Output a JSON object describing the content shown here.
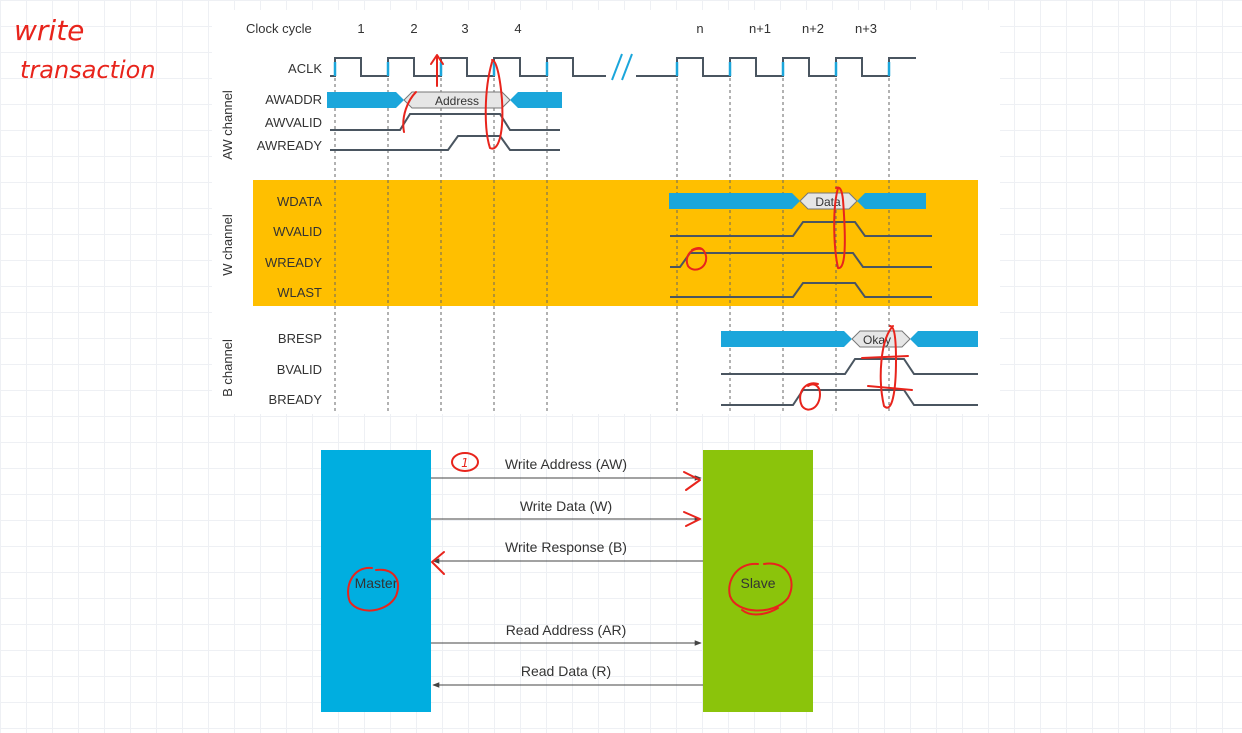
{
  "annotation": {
    "line1": "write",
    "line2": "transaction",
    "circled_number": "1"
  },
  "timing": {
    "clock_cycle_label": "Clock cycle",
    "cycles": [
      "1",
      "2",
      "3",
      "4",
      "n",
      "n+1",
      "n+2",
      "n+3"
    ],
    "channels": {
      "aw": "AW channel",
      "w": "W channel",
      "b": "B channel"
    },
    "signals": {
      "aclk": "ACLK",
      "awaddr": "AWADDR",
      "awvalid": "AWVALID",
      "awready": "AWREADY",
      "wdata": "WDATA",
      "wvalid": "WVALID",
      "wready": "WREADY",
      "wlast": "WLAST",
      "bresp": "BRESP",
      "bvalid": "BVALID",
      "bready": "BREADY"
    },
    "bus_values": {
      "address": "Address",
      "data": "Data",
      "okay": "Okay"
    }
  },
  "blocks": {
    "master": "Master",
    "slave": "Slave",
    "arrows": {
      "aw": "Write Address (AW)",
      "w": "Write Data (W)",
      "b": "Write Response (B)",
      "ar": "Read Address (AR)",
      "r": "Read Data (R)"
    }
  },
  "colors": {
    "bus": "#1ba6db",
    "w_channel_bg": "#ffbf00",
    "master": "#00aee0",
    "slave": "#8bc40b",
    "annotation": "#e8241c"
  }
}
